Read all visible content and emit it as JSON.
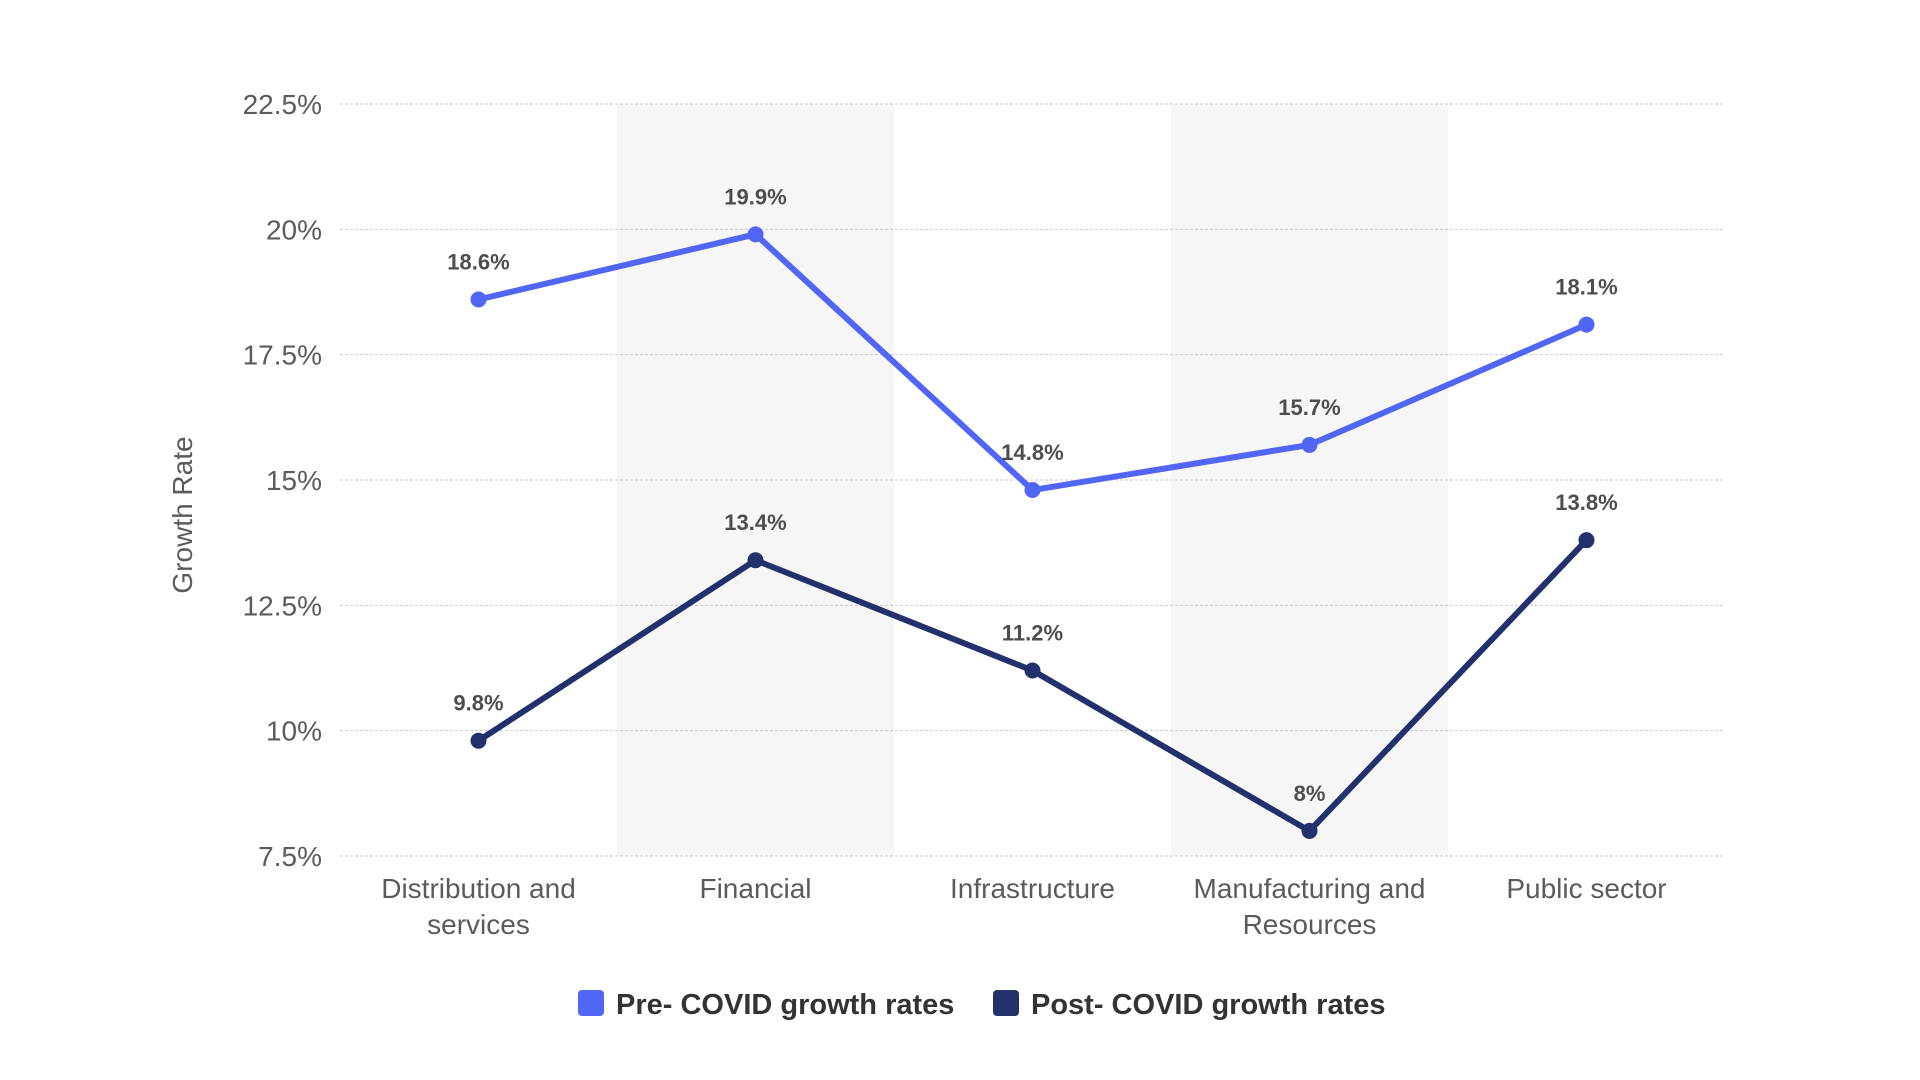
{
  "chart_data": {
    "type": "line",
    "title": "",
    "xlabel": "",
    "ylabel": "Growth Rate",
    "ylim": [
      7.5,
      22.5
    ],
    "yticks": [
      7.5,
      10,
      12.5,
      15,
      17.5,
      20,
      22.5
    ],
    "ytick_labels": [
      "7.5%",
      "10%",
      "12.5%",
      "15%",
      "17.5%",
      "20%",
      "22.5%"
    ],
    "grid": true,
    "legend_position": "bottom-center",
    "categories": [
      [
        "Distribution and",
        "services"
      ],
      [
        "Financial"
      ],
      [
        "Infrastructure"
      ],
      [
        "Manufacturing and",
        "Resources"
      ],
      [
        "Public sector"
      ]
    ],
    "series": [
      {
        "name": "Pre- COVID growth rates",
        "color": "#5266f5",
        "values": [
          18.6,
          19.9,
          14.8,
          15.7,
          18.1
        ],
        "labels": [
          "18.6%",
          "19.9%",
          "14.8%",
          "15.7%",
          "18.1%"
        ]
      },
      {
        "name": "Post- COVID growth rates",
        "color": "#22316b",
        "values": [
          9.8,
          13.4,
          11.2,
          8,
          13.8
        ],
        "labels": [
          "9.8%",
          "13.4%",
          "11.2%",
          "8%",
          "13.8%"
        ]
      }
    ]
  }
}
